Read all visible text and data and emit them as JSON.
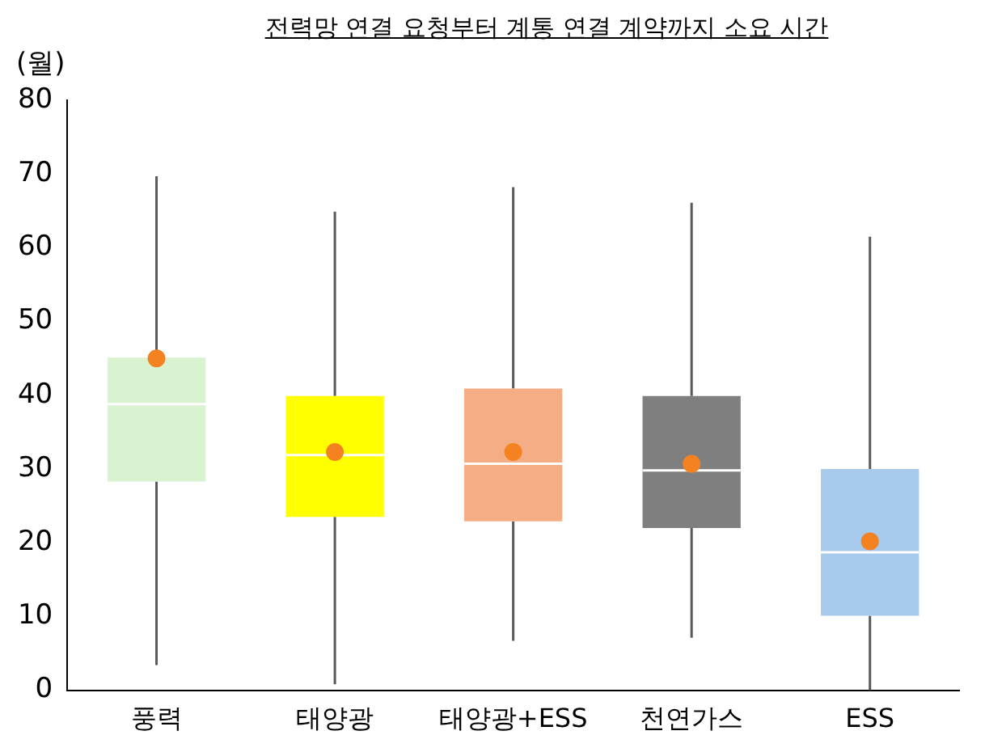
{
  "chart_data": {
    "type": "box",
    "title": "전력망 연결 요청부터 계통 연결 계약까지 소요 시간",
    "ylabel": "(월)",
    "categories": [
      "풍력",
      "태양광",
      "태양광+ESS",
      "천연가스",
      "ESS"
    ],
    "ylim": [
      0,
      80
    ],
    "yticks": [
      0,
      10,
      20,
      30,
      40,
      50,
      60,
      70,
      80
    ],
    "grid": false,
    "legend": false,
    "series": [
      {
        "type": "box",
        "colors": [
          "#d9f2d0",
          "#ffff00",
          "#f4ad85",
          "#7f7f7f",
          "#a6c9ec"
        ],
        "boxes": [
          {
            "low": 3.4,
            "q1": 28.3,
            "median": 38.8,
            "q3": 45.1,
            "high": 69.7
          },
          {
            "low": 0.8,
            "q1": 23.5,
            "median": 31.9,
            "q3": 39.9,
            "high": 64.9
          },
          {
            "low": 6.7,
            "q1": 22.9,
            "median": 30.7,
            "q3": 40.9,
            "high": 68.2
          },
          {
            "low": 7.1,
            "q1": 22.0,
            "median": 29.8,
            "q3": 39.9,
            "high": 66.1
          },
          {
            "low": 0,
            "q1": 10.1,
            "median": 18.7,
            "q3": 30.0,
            "high": 61.5
          }
        ]
      },
      {
        "type": "scatter",
        "color": "#f58220",
        "marker": "circle",
        "x": [
          "풍력",
          "태양광",
          "태양광+ESS",
          "천연가스",
          "ESS"
        ],
        "values": [
          45,
          32.3,
          32.3,
          30.7,
          20.2
        ]
      }
    ]
  }
}
